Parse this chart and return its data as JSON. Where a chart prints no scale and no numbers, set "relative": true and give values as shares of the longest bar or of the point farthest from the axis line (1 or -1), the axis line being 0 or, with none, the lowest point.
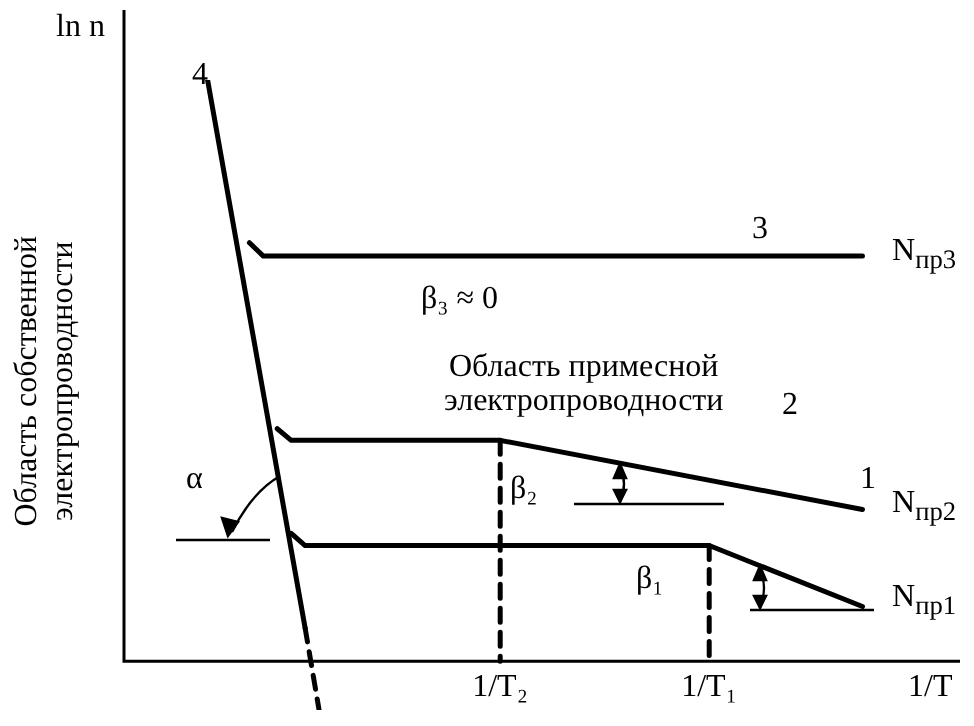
{
  "chart_data": {
    "type": "line",
    "relative": true,
    "xlabel": "1/T",
    "ylabel": "ln n",
    "categories": [
      null,
      null,
      null,
      null,
      null,
      null,
      null,
      null,
      null,
      null,
      null,
      null,
      null,
      null,
      null,
      null,
      null,
      null,
      null,
      null,
      null,
      null,
      null,
      null,
      null,
      null,
      null,
      "1/T₂",
      null,
      null,
      null,
      null,
      null,
      null,
      null,
      null,
      null,
      null,
      null,
      null,
      null,
      null,
      "1/T₁",
      null,
      null,
      null,
      null,
      null,
      null,
      null,
      null,
      null,
      null,
      null,
      null,
      null,
      null,
      null,
      null,
      null,
      null
    ],
    "series": [
      {
        "color": "#000000",
        "values": [
          null,
          null,
          null,
          null,
          null,
          null,
          1,
          null,
          null,
          null,
          null,
          null,
          null,
          0.057,
          null,
          null,
          null,
          null,
          null,
          null,
          null,
          null,
          null,
          null,
          null,
          null,
          null,
          null,
          null,
          null,
          null,
          null,
          null,
          null,
          null,
          null,
          null,
          null,
          null,
          null,
          null,
          null,
          null,
          null,
          null,
          null,
          null,
          null,
          null,
          null,
          null,
          null,
          null,
          null,
          null,
          null,
          null,
          null,
          null,
          null,
          null
        ]
      },
      {
        "color": "#000000",
        "line_style": "dashed",
        "values": [
          null,
          null,
          null,
          null,
          null,
          null,
          null,
          null,
          null,
          null,
          null,
          null,
          null,
          0.057,
          -0.084,
          null,
          null,
          null,
          null,
          null,
          null,
          null,
          null,
          null,
          null,
          null,
          null,
          null,
          null,
          null,
          null,
          null,
          null,
          null,
          null,
          null,
          null,
          null,
          null,
          null,
          null,
          null,
          null,
          null,
          null,
          null,
          null,
          null,
          null,
          null,
          null,
          null,
          null,
          null,
          null,
          null,
          null,
          null,
          null,
          null,
          null
        ]
      },
      {
        "color": "#000000",
        "values": [
          null,
          null,
          null,
          null,
          null,
          null,
          null,
          null,
          null,
          0.72,
          0.697,
          null,
          null,
          null,
          null,
          null,
          null,
          null,
          null,
          null,
          null,
          null,
          null,
          null,
          null,
          null,
          null,
          null,
          null,
          null,
          null,
          null,
          null,
          null,
          null,
          null,
          null,
          null,
          null,
          null,
          null,
          null,
          null,
          null,
          null,
          null,
          null,
          null,
          null,
          null,
          null,
          null,
          null,
          0.697,
          null,
          null,
          null,
          null,
          null,
          null,
          null
        ]
      },
      {
        "color": "#000000",
        "values": [
          null,
          null,
          null,
          null,
          null,
          null,
          null,
          null,
          null,
          null,
          null,
          0.4,
          0.38,
          null,
          null,
          null,
          null,
          null,
          null,
          null,
          null,
          null,
          null,
          null,
          null,
          null,
          null,
          0.38,
          null,
          null,
          null,
          null,
          null,
          null,
          null,
          null,
          null,
          null,
          null,
          null,
          null,
          null,
          null,
          null,
          null,
          null,
          null,
          null,
          null,
          null,
          null,
          null,
          null,
          0.261,
          null,
          null,
          null,
          null,
          null,
          null,
          null
        ]
      },
      {
        "color": "#000000",
        "values": [
          null,
          null,
          null,
          null,
          null,
          null,
          null,
          null,
          null,
          null,
          null,
          null,
          0.22,
          0.199,
          null,
          null,
          null,
          null,
          null,
          null,
          null,
          null,
          null,
          null,
          null,
          null,
          null,
          null,
          null,
          null,
          null,
          null,
          null,
          null,
          null,
          null,
          null,
          null,
          null,
          null,
          null,
          null,
          0.199,
          null,
          null,
          null,
          null,
          null,
          null,
          null,
          null,
          null,
          null,
          0.094,
          null,
          null,
          null,
          null,
          null,
          null,
          null
        ]
      },
      {
        "color": "#000000",
        "line_style": "dashed",
        "x": [
          "1/T₂",
          "1/T₂"
        ],
        "values": [
          0.38,
          0
        ]
      },
      {
        "color": "#000000",
        "line_style": "dashed",
        "x": [
          "1/T₁",
          "1/T₁"
        ],
        "values": [
          0.199,
          0
        ]
      }
    ],
    "annotations": [
      "4",
      "3",
      "2",
      "1",
      "N$_{пр3}$",
      "N$_{пр2}$",
      "N$_{пр1}$",
      "β₃ ≈ 0",
      "Область примесной\nэлектропроводности",
      "α",
      "β₂",
      "β₁",
      "Область собственной\nэлектропроводности"
    ]
  }
}
